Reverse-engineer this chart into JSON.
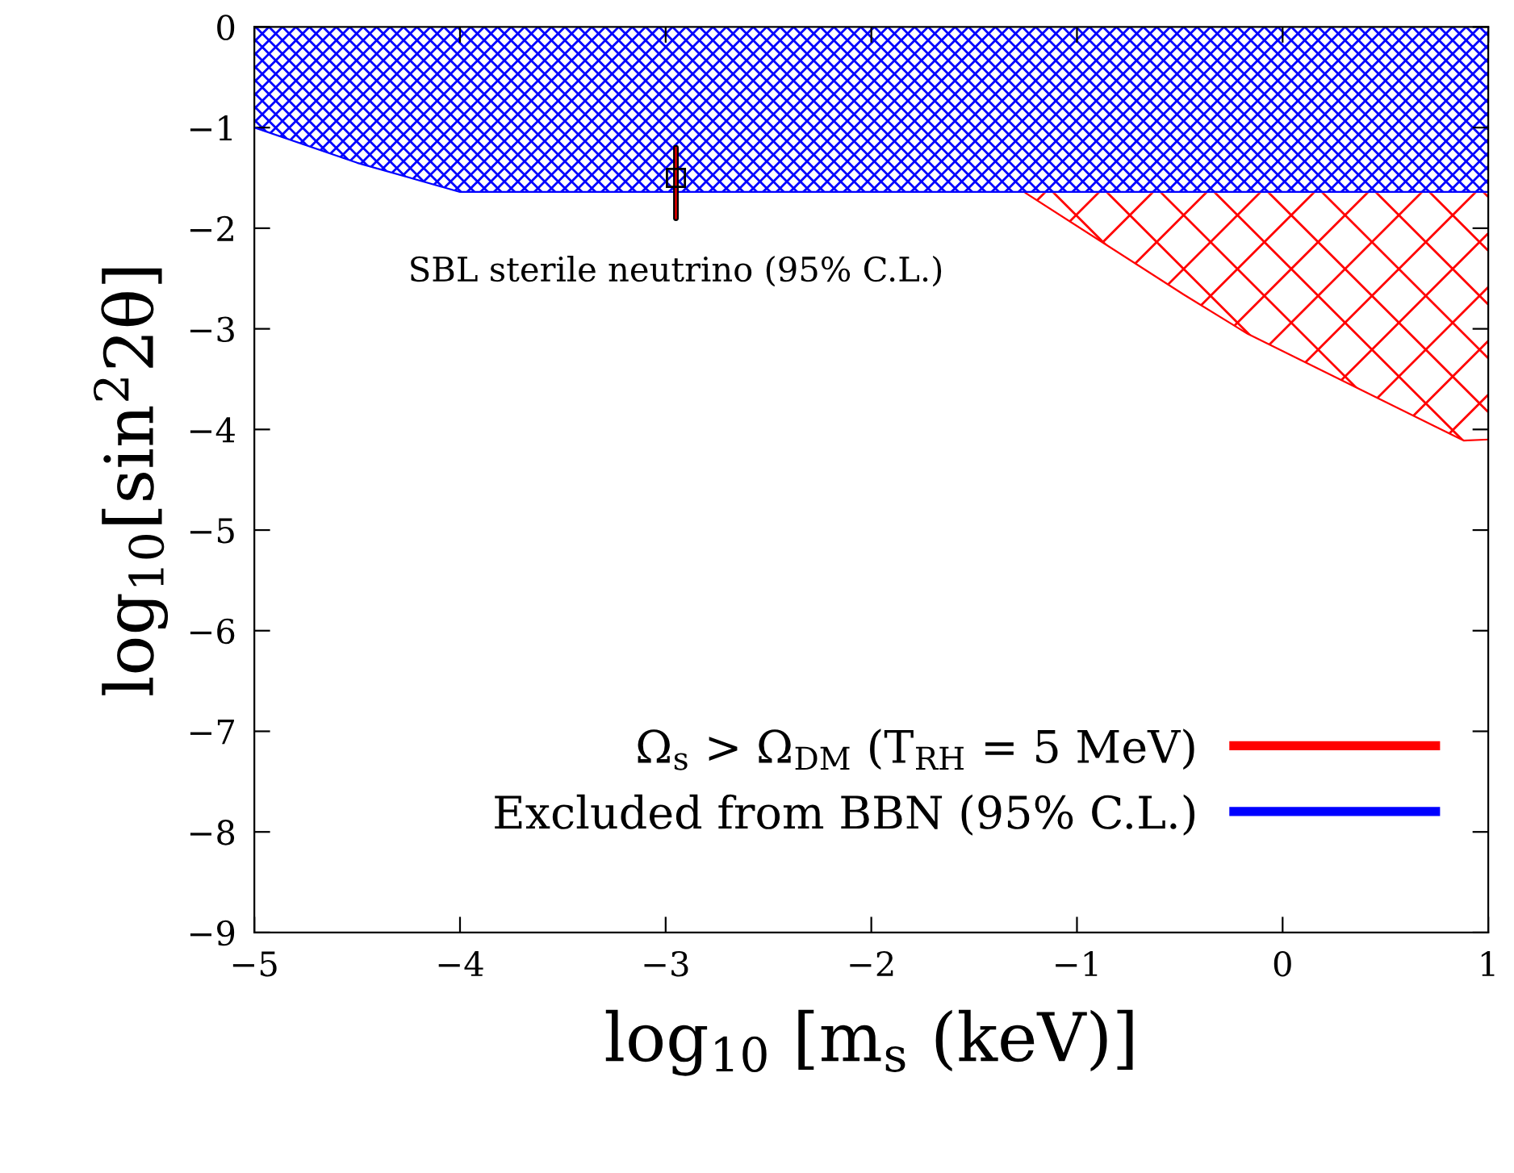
{
  "chart_data": {
    "type": "line",
    "xlabel": "log$_{10}$ [m$_{s}$ (keV)]",
    "ylabel": "log$_{10}$[sin$^{2}$2θ]",
    "xlim": [
      -5,
      1
    ],
    "xticks": [
      -5,
      -4,
      -3,
      -2,
      -1,
      0,
      1
    ],
    "ylim": [
      -9,
      0
    ],
    "yticks": [
      -9,
      -8,
      -7,
      -6,
      -5,
      -4,
      -3,
      -2,
      -1,
      0
    ],
    "grid": false,
    "legend": "bottom right",
    "series": [
      {
        "name": "Ω$_{s}$ > Ω$_{DM}$ (T$_{RH}$ = 5 MeV)",
        "color": "#ff0000",
        "x": [
          -1.25,
          -0.48,
          -0.17,
          0.88,
          1
        ],
        "values": [
          -1.65,
          -2.66,
          -3.05,
          -4.11,
          -4.1
        ],
        "lower": [
          -1.65,
          -2.66,
          -3.05,
          -4.11,
          -4.1
        ],
        "upper": [
          -1.65,
          -1.65,
          -1.65,
          -1.65,
          -1.65
        ]
      },
      {
        "name": "Excluded from BBN (95% C.L.)",
        "color": "#0000ff",
        "x": [
          -5,
          -4.5,
          -4,
          1
        ],
        "values": [
          -1.0,
          -1.35,
          -1.64,
          -1.64
        ],
        "lower": [
          -1.0,
          -1.35,
          -1.64,
          -1.64
        ],
        "upper": [
          0,
          0,
          0,
          0
        ]
      },
      {
        "type": "scatter",
        "color": "#000000",
        "x": [
          -2.95
        ],
        "values": [
          -1.5
        ],
        "errors": [
          [
            -1.9,
            -1.2
          ]
        ],
        "marker": "square"
      }
    ],
    "annotations": [
      {
        "text": "SBL sterile neutrino (95% C.L.)",
        "x": -2.95,
        "y": -1.5
      }
    ]
  }
}
